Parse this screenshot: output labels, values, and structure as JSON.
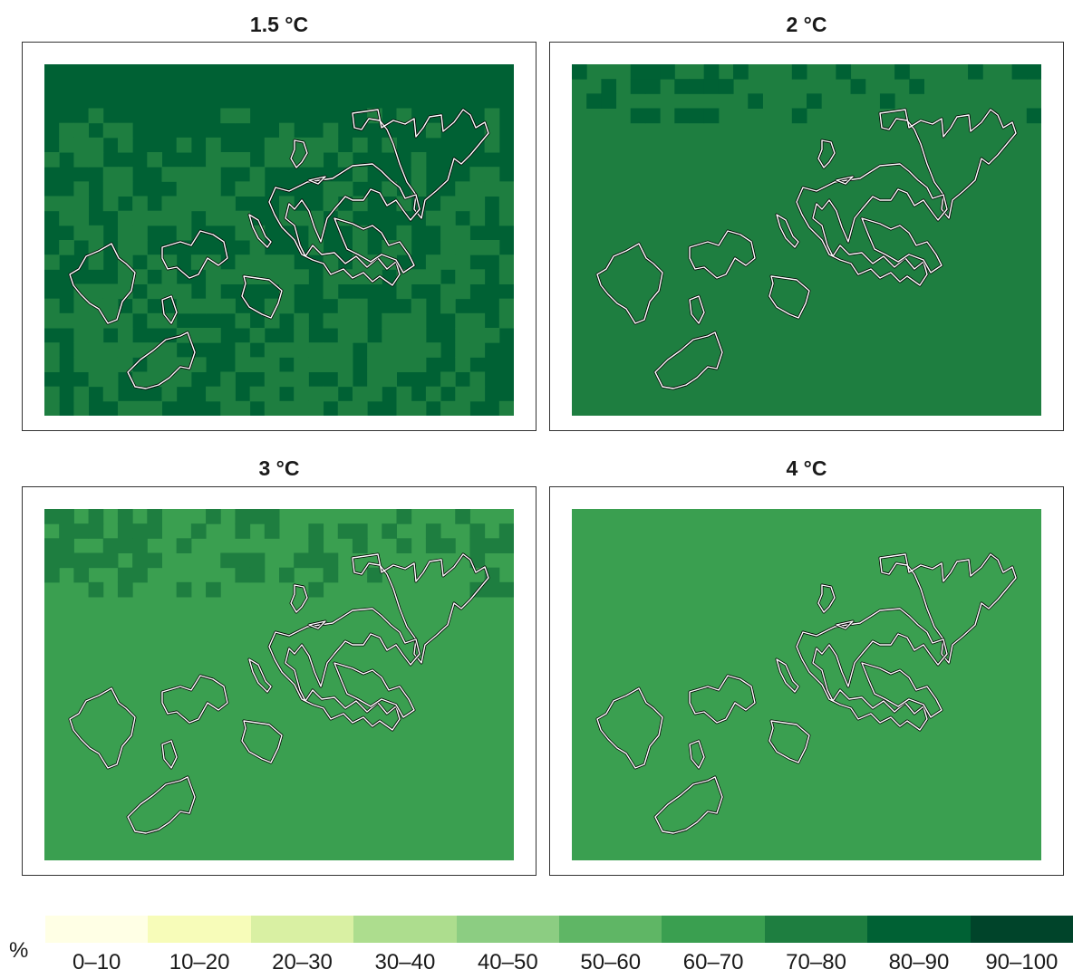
{
  "panels": [
    {
      "title": "1.5 °C",
      "base_class": 8,
      "noise": {
        "seed": 11,
        "p_low": 0.55,
        "rows_start": 3,
        "low_class": 7
      }
    },
    {
      "title": "2 °C",
      "base_class": 7,
      "noise": {
        "seed": 23,
        "p_high": 0.35,
        "rows_end": 4,
        "high_class": 8
      }
    },
    {
      "title": "3 °C",
      "base_class": 6,
      "noise": {
        "seed": 37,
        "p_high": 0.5,
        "rows_end": 6,
        "high_class": 7
      }
    },
    {
      "title": "4 °C",
      "base_class": 6,
      "noise": null
    }
  ],
  "legend": {
    "unit": "%",
    "classes": [
      {
        "label": "0–10",
        "color": "#ffffe5"
      },
      {
        "label": "10–20",
        "color": "#f7fcb9"
      },
      {
        "label": "20–30",
        "color": "#d9f0a3"
      },
      {
        "label": "30–40",
        "color": "#addd8e"
      },
      {
        "label": "40–50",
        "color": "#8ccd82"
      },
      {
        "label": "50–60",
        "color": "#5fb665"
      },
      {
        "label": "60–70",
        "color": "#3a9f50"
      },
      {
        "label": "70–80",
        "color": "#1e7e40"
      },
      {
        "label": "80–90",
        "color": "#006134"
      },
      {
        "label": "90–100",
        "color": "#00442a"
      }
    ]
  }
}
